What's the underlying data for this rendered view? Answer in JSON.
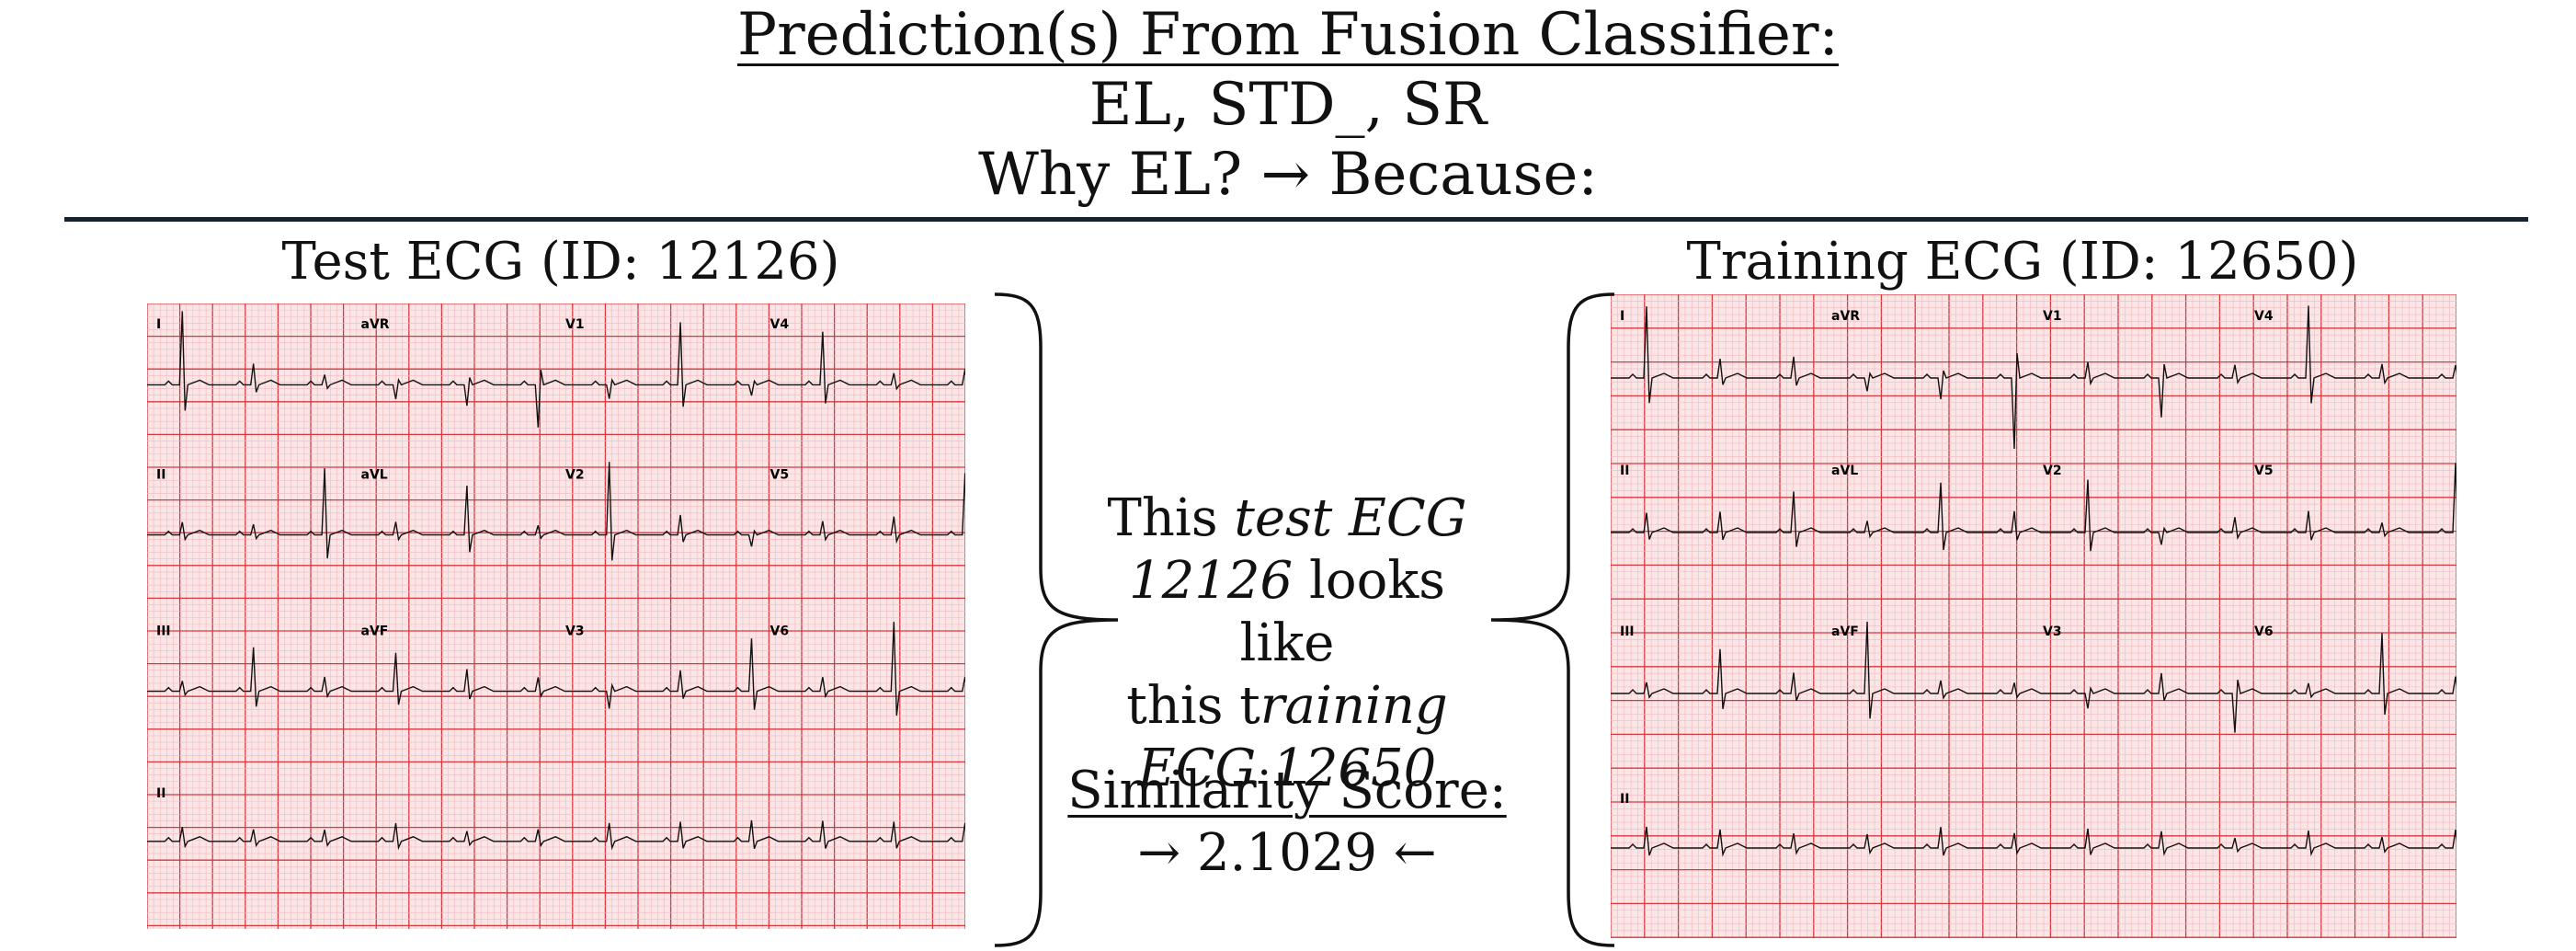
{
  "header": {
    "title": "Prediction(s) From Fusion Classifier:",
    "predictions": "EL, STD_, SR",
    "question": "Why EL? → Because:"
  },
  "test_panel": {
    "title": "Test ECG (ID: 12126)",
    "leads": [
      "I",
      "aVR",
      "V1",
      "V4",
      "II",
      "aVL",
      "V2",
      "V5",
      "III",
      "aVF",
      "V3",
      "V6",
      "II"
    ]
  },
  "training_panel": {
    "title": "Training ECG (ID: 12650)",
    "leads": [
      "I",
      "aVR",
      "V1",
      "V4",
      "II",
      "aVL",
      "V2",
      "V5",
      "III",
      "aVF",
      "V3",
      "V6",
      "II"
    ]
  },
  "explanation": {
    "t1": "This ",
    "t2": "test ECG",
    "t3": "12126",
    "t4": " looks like",
    "t5": "this t",
    "t6": "raining",
    "t7": "ECG 12650"
  },
  "similarity": {
    "label": "Similarity Score:",
    "value": "→  2.1029 ←"
  },
  "colors": {
    "grid_major": "#d9383f",
    "grid_minor": "#f3b8bb",
    "grid_bg": "#fbe6e7",
    "trace": "#111111",
    "rule": "#16222e"
  }
}
